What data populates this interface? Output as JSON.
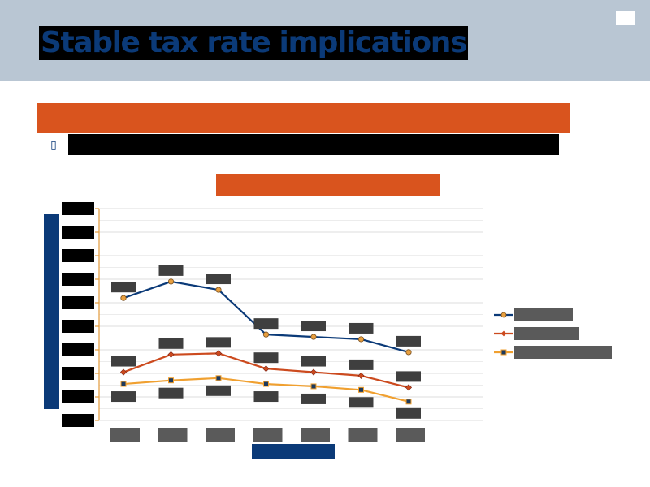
{
  "slide": {
    "title": "Stable tax rate implications",
    "bullet_glyph": "▯"
  },
  "colors": {
    "header_bg": "#b9c6d3",
    "title_text": "#0b3a78",
    "accent_orange": "#d9541e",
    "series_navy": "#0b3a78",
    "series_red": "#cc4a1e",
    "series_amber": "#f0a030"
  },
  "chart_data": {
    "type": "line",
    "title": "",
    "xlabel": "",
    "ylabel": "",
    "categories": [
      "",
      "",
      "",
      "",
      "",
      "",
      ""
    ],
    "ylim": [
      0,
      9
    ],
    "grid": true,
    "legend": "right",
    "series": [
      {
        "color": "#0b3a78",
        "marker": "circle",
        "values": [
          5.2,
          5.9,
          5.55,
          3.65,
          3.55,
          3.45,
          2.9
        ]
      },
      {
        "color": "#cc4a1e",
        "marker": "diamond",
        "values": [
          2.05,
          2.8,
          2.85,
          2.2,
          2.05,
          1.9,
          1.4
        ]
      },
      {
        "color": "#f0a030",
        "marker": "square",
        "values": [
          1.55,
          1.7,
          1.8,
          1.55,
          1.45,
          1.3,
          0.8
        ]
      }
    ]
  }
}
